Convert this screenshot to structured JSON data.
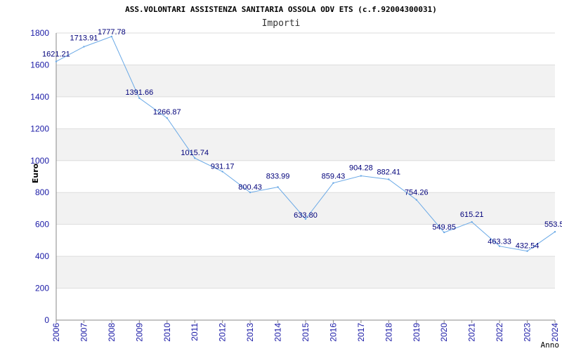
{
  "chart_data": {
    "type": "line",
    "title": "ASS.VOLONTARI ASSISTENZA SANITARIA OSSOLA ODV ETS (c.f.92004300031)",
    "subtitle": "Importi",
    "xlabel": "Anno",
    "ylabel": "Euro",
    "ylim": [
      0,
      1800
    ],
    "yticks": [
      0,
      200,
      400,
      600,
      800,
      1000,
      1200,
      1400,
      1600,
      1800
    ],
    "grid": true,
    "categories": [
      "2006",
      "2007",
      "2008",
      "2009",
      "2010",
      "2011",
      "2012",
      "2013",
      "2014",
      "2015",
      "2016",
      "2017",
      "2018",
      "2019",
      "2020",
      "2021",
      "2022",
      "2023",
      "2024"
    ],
    "series": [
      {
        "values": [
          1621.21,
          1713.91,
          1777.78,
          1391.66,
          1266.87,
          1015.74,
          931.17,
          800.43,
          833.99,
          633.8,
          859.43,
          904.28,
          882.41,
          754.26,
          549.85,
          615.21,
          463.33,
          432.54,
          553.5
        ],
        "labels": [
          "1621.21",
          "1713.91",
          "1777.78",
          "1391.66",
          "1266.87",
          "1015.74",
          "931.17",
          "800.43",
          "833.99",
          "633.80",
          "859.43",
          "904.28",
          "882.41",
          "754.26",
          "549.85",
          "615.21",
          "463.33",
          "432.54",
          "553.5"
        ],
        "color": "#6aa9e6"
      }
    ],
    "colors": {
      "band": "#f2f2f2",
      "gridline": "#dddddd",
      "axis": "#888888",
      "tick_text": "#1a1aa6",
      "label_text": "#00007a"
    }
  }
}
